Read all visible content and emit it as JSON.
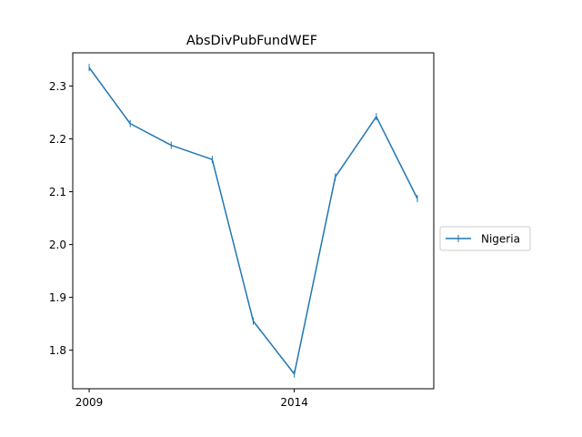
{
  "chart_data": {
    "type": "line",
    "title": "AbsDivPubFundWEF",
    "xlabel": "",
    "ylabel": "",
    "x": [
      2009,
      2010,
      2011,
      2012,
      2013,
      2014,
      2015,
      2016,
      2017
    ],
    "series": [
      {
        "name": "Nigeria",
        "color": "#1f77b4",
        "marker": "vline",
        "values": [
          2.335,
          2.229,
          2.188,
          2.161,
          1.855,
          1.755,
          2.128,
          2.242,
          2.087
        ]
      }
    ],
    "x_ticks": [
      "2009",
      "2014"
    ],
    "y_ticks": [
      "1.8",
      "1.9",
      "2.0",
      "2.1",
      "2.2",
      "2.3"
    ],
    "xlim": [
      2008.6,
      2017.4
    ],
    "ylim": [
      1.727,
      2.363
    ],
    "grid": false,
    "legend_position": "right"
  }
}
